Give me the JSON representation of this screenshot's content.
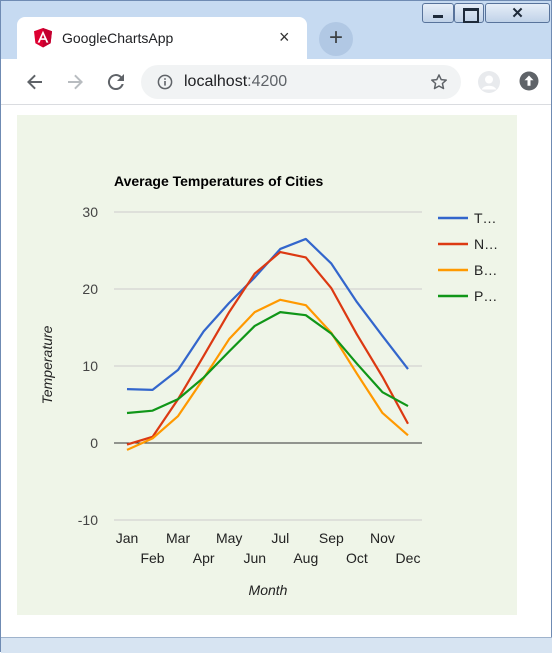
{
  "tab": {
    "title": "GoogleChartsApp",
    "close": "×",
    "favicon": "angular-icon"
  },
  "new_tab": "+",
  "window_controls": {
    "close": "✕"
  },
  "toolbar": {
    "back_icon": "arrow-left-icon",
    "forward_icon": "arrow-right-icon",
    "reload_icon": "reload-icon",
    "url_host": "localhost",
    "url_port": ":4200"
  },
  "colors": {
    "tab_strip": "#c6daf1",
    "chart_background": "#eff5e8",
    "series_1": "#3366cc",
    "series_2": "#dc3912",
    "series_3": "#ff9900",
    "series_4": "#109618"
  },
  "chart_data": {
    "type": "line",
    "title": "Average Temperatures of Cities",
    "xlabel": "Month",
    "ylabel": "Temperature",
    "categories": [
      "Jan",
      "Feb",
      "Mar",
      "Apr",
      "May",
      "Jun",
      "Jul",
      "Aug",
      "Sep",
      "Oct",
      "Nov",
      "Dec"
    ],
    "ylim": [
      -10,
      30
    ],
    "yticks": [
      30,
      20,
      10,
      0,
      -10
    ],
    "grid": true,
    "legend_position": "right",
    "series": [
      {
        "name": "T…",
        "color": "#3366cc",
        "values": [
          7.0,
          6.9,
          9.5,
          14.5,
          18.2,
          21.5,
          25.2,
          26.5,
          23.3,
          18.3,
          13.9,
          9.6
        ]
      },
      {
        "name": "N…",
        "color": "#dc3912",
        "values": [
          -0.2,
          0.8,
          5.7,
          11.3,
          17.0,
          22.0,
          24.8,
          24.1,
          20.1,
          14.1,
          8.6,
          2.5
        ]
      },
      {
        "name": "B…",
        "color": "#ff9900",
        "values": [
          -0.9,
          0.6,
          3.5,
          8.4,
          13.5,
          17.0,
          18.6,
          17.9,
          14.3,
          9.0,
          3.9,
          1.0
        ]
      },
      {
        "name": "P…",
        "color": "#109618",
        "values": [
          3.9,
          4.2,
          5.7,
          8.5,
          11.9,
          15.2,
          17.0,
          16.6,
          14.2,
          10.3,
          6.6,
          4.8
        ]
      }
    ]
  }
}
